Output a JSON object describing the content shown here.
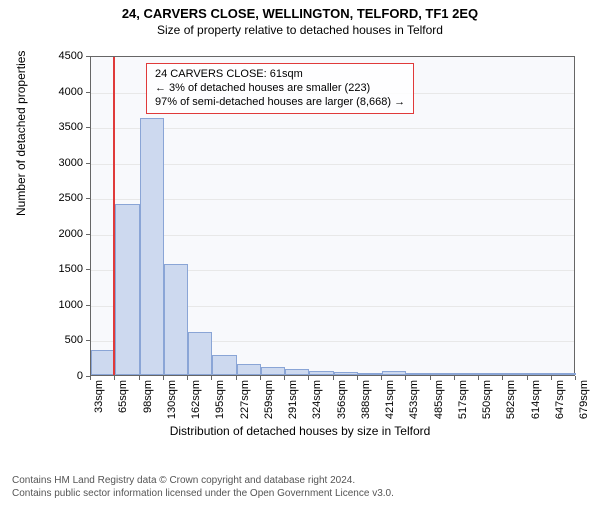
{
  "title": "24, CARVERS CLOSE, WELLINGTON, TELFORD, TF1 2EQ",
  "subtitle": "Size of property relative to detached houses in Telford",
  "chart": {
    "type": "histogram",
    "ylabel": "Number of detached properties",
    "xlabel": "Distribution of detached houses by size in Telford",
    "y": {
      "min": 0,
      "max": 4500,
      "step": 500
    },
    "x": {
      "labels": [
        "33sqm",
        "65sqm",
        "98sqm",
        "130sqm",
        "162sqm",
        "195sqm",
        "227sqm",
        "259sqm",
        "291sqm",
        "324sqm",
        "356sqm",
        "388sqm",
        "421sqm",
        "453sqm",
        "485sqm",
        "517sqm",
        "550sqm",
        "582sqm",
        "614sqm",
        "647sqm",
        "679sqm"
      ]
    },
    "bars": [
      350,
      2400,
      3620,
      1560,
      600,
      280,
      160,
      110,
      80,
      50,
      40,
      30,
      60,
      20,
      15,
      10,
      10,
      10,
      8,
      6
    ],
    "bar_fill": "#cdd9ef",
    "bar_stroke": "#8aa5d6",
    "plot_bg": "#f8f9fc",
    "grid_color": "#e8e8e8",
    "axis_color": "#666666",
    "marker": {
      "x_index": 0.9,
      "color": "#e03a3a"
    },
    "info_box": {
      "border_color": "#e03a3a",
      "lines": [
        "24 CARVERS CLOSE: 61sqm",
        "← 3% of detached houses are smaller (223)",
        "97% of semi-detached houses are larger (8,668) →"
      ]
    },
    "title_fontsize": 13,
    "subtitle_fontsize": 12,
    "label_fontsize": 12,
    "tick_fontsize": 11,
    "info_fontsize": 11
  },
  "footer": {
    "line1": "Contains HM Land Registry data © Crown copyright and database right 2024.",
    "line2": "Contains public sector information licensed under the Open Government Licence v3.0.",
    "fontsize": 10
  }
}
